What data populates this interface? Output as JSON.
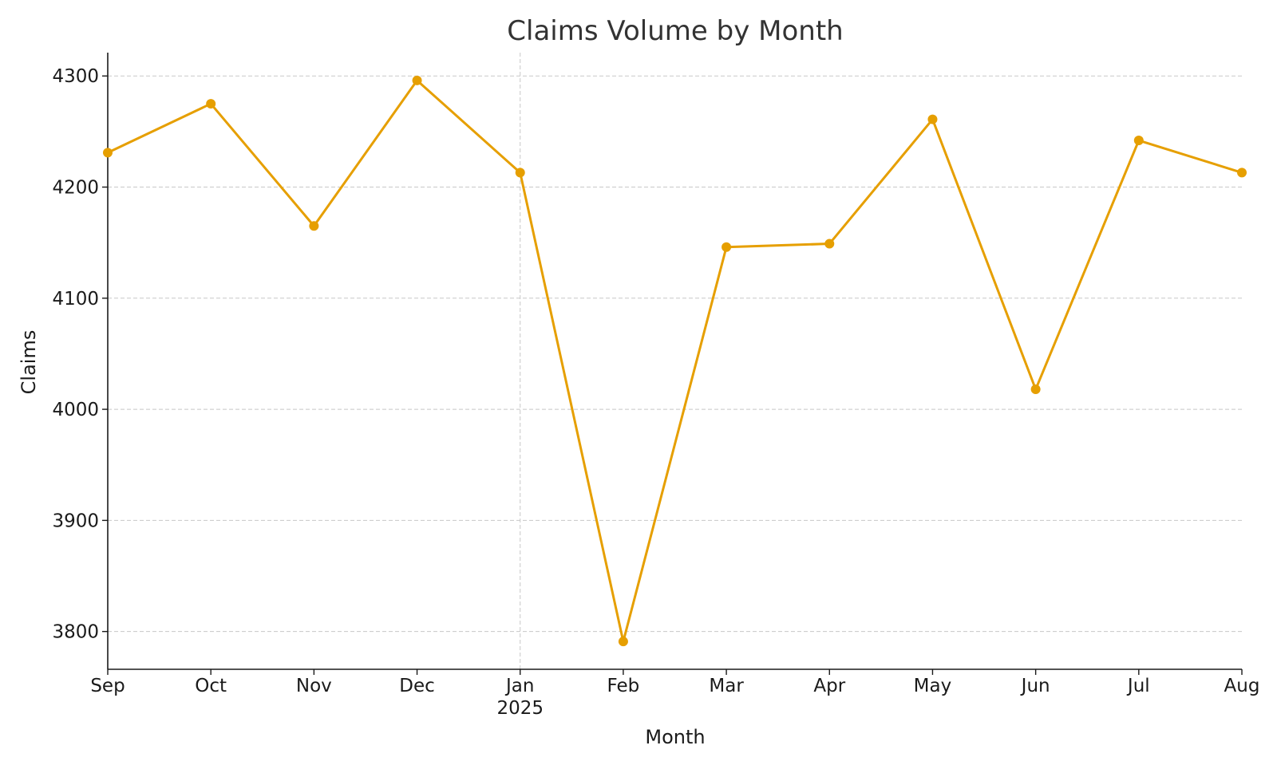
{
  "chart_data": {
    "type": "line",
    "title": "Claims Volume by Month",
    "xlabel": "Month",
    "ylabel": "Claims",
    "categories": [
      "Sep",
      "Oct",
      "Nov",
      "Dec",
      "Jan",
      "Feb",
      "Mar",
      "Apr",
      "May",
      "Jun",
      "Jul",
      "Aug"
    ],
    "year_label": "2025",
    "series": [
      {
        "values": [
          4231,
          4275,
          4165,
          4296,
          4213,
          3791,
          4146,
          4149,
          4261,
          4018,
          4242,
          4213
        ]
      }
    ],
    "ylim": [
      3766,
      4321
    ],
    "yticks": [
      3800,
      3900,
      4000,
      4100,
      4200,
      4300
    ],
    "grid": true,
    "line_color": "#E69F00"
  }
}
